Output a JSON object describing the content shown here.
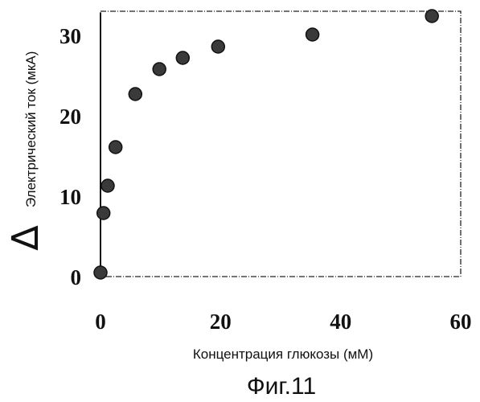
{
  "chart_data": {
    "type": "scatter",
    "title": "",
    "xlabel": "Концентрация глюкозы (мМ)",
    "ylabel": "Электрический ток (мкА)",
    "ylabel_prefix_symbol": "∆",
    "xlim": [
      0,
      60
    ],
    "ylim": [
      0,
      33
    ],
    "grid": false,
    "legend": "none",
    "x_ticks": [
      0,
      20,
      40,
      60
    ],
    "y_ticks": [
      0,
      10,
      20,
      30
    ],
    "x_tick_labels": [
      "0",
      "20",
      "40",
      "60"
    ],
    "y_tick_labels": [
      "0",
      "10",
      "20",
      "30"
    ],
    "marker_color": "#3a3a3a",
    "series": [
      {
        "x": [
          0,
          0.5,
          1.2,
          2.5,
          5.8,
          9.8,
          13.7,
          19.6,
          35.3,
          55.2
        ],
        "y": [
          0.5,
          7.9,
          11.3,
          16.1,
          22.7,
          25.8,
          27.2,
          28.6,
          30.1,
          32.4
        ]
      }
    ]
  },
  "caption": "Фиг.11"
}
